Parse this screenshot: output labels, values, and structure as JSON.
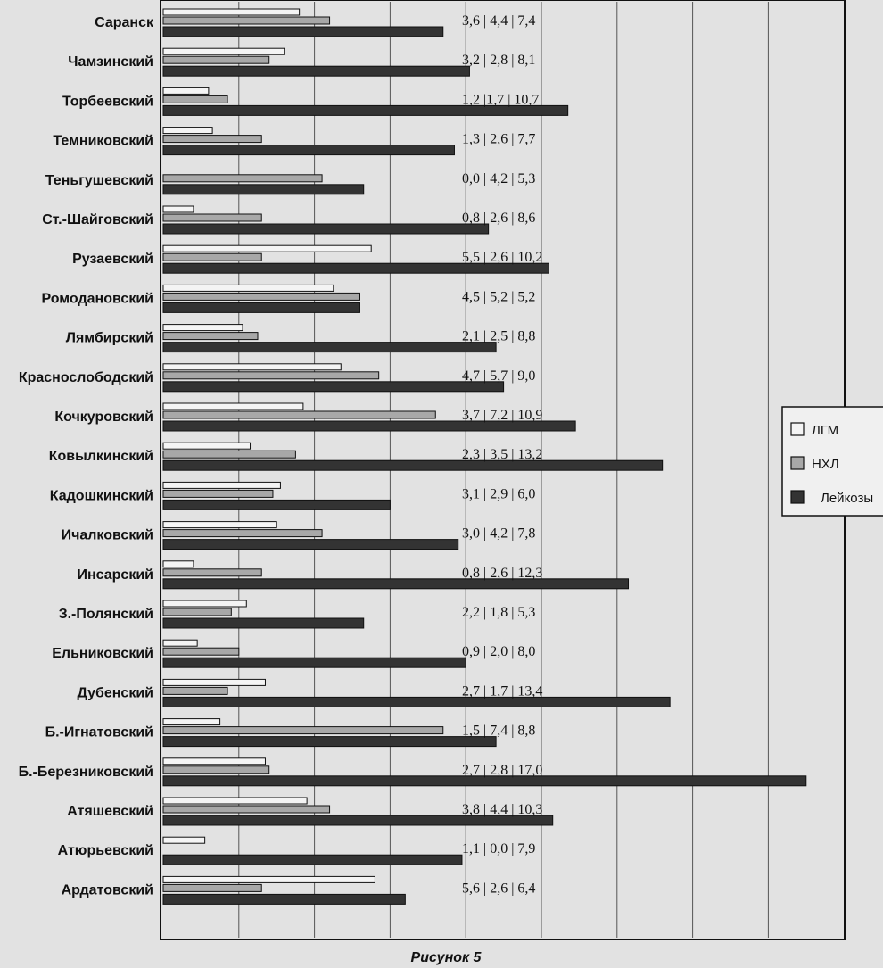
{
  "chart_data": {
    "type": "bar",
    "orientation": "horizontal",
    "caption": "Рисунок 5",
    "categories": [
      "Саранск",
      "Чамзинский",
      "Торбеевский",
      "Темниковский",
      "Теньгушевский",
      "Ст.-Шайговский",
      "Рузаевский",
      "Ромодановский",
      "Лямбирский",
      "Краснослободский",
      "Кочкуровский",
      "Ковылкинский",
      "Кадошкинский",
      "Ичалковский",
      "Инсарский",
      "З.-Полянский",
      "Ельниковский",
      "Дубенский",
      "Б.-Игнатовский",
      "Б.-Березниковский",
      "Атяшевский",
      "Атюрьевский",
      "Ардатовский"
    ],
    "series": [
      {
        "name": "ЛГМ",
        "color": "#f4f4f4",
        "values": [
          3.6,
          3.2,
          1.2,
          1.3,
          0.0,
          0.8,
          5.5,
          4.5,
          2.1,
          4.7,
          3.7,
          2.3,
          3.1,
          3.0,
          0.8,
          2.2,
          0.9,
          2.7,
          1.5,
          2.7,
          3.8,
          1.1,
          5.6
        ]
      },
      {
        "name": "НХЛ",
        "color": "#a8a8a8",
        "values": [
          4.4,
          2.8,
          1.7,
          2.6,
          4.2,
          2.6,
          2.6,
          5.2,
          2.5,
          5.7,
          7.2,
          3.5,
          2.9,
          4.2,
          2.6,
          1.8,
          2.0,
          1.7,
          7.4,
          2.8,
          4.4,
          0.0,
          2.6
        ]
      },
      {
        "name": "Лейкозы",
        "color": "#333333",
        "values": [
          7.4,
          8.1,
          10.7,
          7.7,
          5.3,
          8.6,
          10.2,
          5.2,
          8.8,
          9.0,
          10.9,
          13.2,
          6.0,
          7.8,
          12.3,
          5.3,
          8.0,
          13.4,
          8.8,
          17.0,
          10.3,
          7.9,
          6.4
        ]
      }
    ],
    "value_labels": [
      "3,6 | 4,4 | 7,4",
      "3,2 | 2,8 | 8,1",
      "1,2 |1,7 | 10,7",
      "1,3 | 2,6 | 7,7",
      "0,0 | 4,2 | 5,3",
      "0,8 | 2,6 | 8,6",
      "5,5 | 2,6 | 10,2",
      "4,5 | 5,2 | 5,2",
      "2,1 | 2,5 | 8,8",
      "4,7 | 5,7 | 9,0",
      "3,7 | 7,2 | 10,9",
      "2,3 | 3,5 | 13,2",
      "3,1 | 2,9 | 6,0",
      "3,0 | 4,2 | 7,8",
      "0,8 | 2,6 | 12,3",
      "2,2 | 1,8 | 5,3",
      "0,9 | 2,0 | 8,0",
      "2,7 | 1,7 | 13,4",
      "1,5 | 7,4 | 8,8",
      "2,7 | 2,8 | 17,0",
      "3,8 | 4,4 | 10,3",
      "1,1 | 0,0 | 7,9",
      "5,6 | 2,6 | 6,4"
    ],
    "xlim": [
      0,
      18
    ],
    "x_gridlines": [
      2,
      4,
      6,
      8,
      10,
      12,
      14,
      16
    ],
    "grid": true,
    "legend": [
      "ЛГМ",
      "НХЛ",
      "Лейкозы"
    ],
    "legend_position": "right"
  }
}
